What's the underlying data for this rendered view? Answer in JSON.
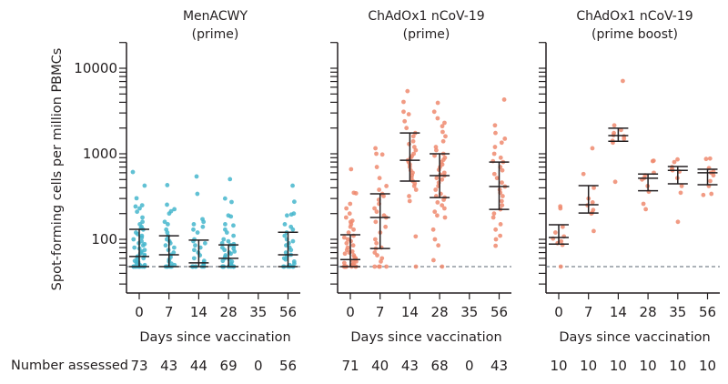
{
  "chart_data": {
    "type": "scatter",
    "ylabel": "Spot-forming cells per million PBMCs",
    "yscale": "log",
    "ylim": [
      23.5,
      20000
    ],
    "yticks_major": [
      100,
      1000,
      10000
    ],
    "ytick_labels": [
      "100",
      "1000",
      "10000"
    ],
    "yticks_minor": [
      30,
      40,
      50,
      60,
      70,
      80,
      90,
      200,
      300,
      400,
      500,
      600,
      700,
      800,
      900,
      2000,
      3000,
      4000,
      5000,
      6000,
      7000,
      8000,
      9000,
      20000
    ],
    "lower_limit_of_detection": 48,
    "number_assessed_label": "Number assessed",
    "colors": {
      "menacwy": "#45b6cd",
      "chadox": "#ee8a6f",
      "bars": "#231f20",
      "dashed": "#5a6670"
    },
    "panels": [
      {
        "title_line1": "MenACWY",
        "title_line2": "(prime)",
        "xlabel": "Days since vaccination",
        "color_key": "menacwy",
        "groups": [
          {
            "day": "0",
            "n": "73",
            "median": 63,
            "q1": 48,
            "q3": 131,
            "points": [
              612,
              424,
              302,
              242,
              250,
              230,
              210,
              180,
              160,
              150,
              140,
              135,
              130,
              120,
              115,
              110,
              105,
              100,
              95,
              90,
              88,
              85,
              80,
              78,
              75,
              72,
              70,
              68,
              66,
              64,
              63,
              62,
              60,
              58,
              56,
              55,
              54,
              52,
              50,
              50,
              48,
              48,
              48,
              48,
              48,
              48,
              48,
              48,
              48,
              48
            ]
          },
          {
            "day": "7",
            "n": "43",
            "median": 66,
            "q1": 48,
            "q3": 110,
            "points": [
              430,
              254,
              213,
              225,
              200,
              160,
              150,
              130,
              120,
              110,
              100,
              95,
              90,
              85,
              80,
              75,
              70,
              66,
              62,
              58,
              55,
              52,
              50,
              48,
              48,
              48,
              48,
              48
            ]
          },
          {
            "day": "14",
            "n": "44",
            "median": 53,
            "q1": 48,
            "q3": 98,
            "points": [
              543,
              340,
              172,
              160,
              150,
              140,
              130,
              120,
              100,
              95,
              90,
              85,
              80,
              75,
              70,
              65,
              60,
              56,
              53,
              52,
              50,
              48,
              48,
              48,
              48,
              48,
              48,
              48
            ]
          },
          {
            "day": "28",
            "n": "69",
            "median": 60,
            "q1": 48,
            "q3": 86,
            "points": [
              505,
              300,
              273,
              190,
              185,
              150,
              145,
              130,
              120,
              110,
              100,
              95,
              90,
              88,
              86,
              84,
              80,
              78,
              75,
              72,
              70,
              68,
              65,
              62,
              60,
              58,
              56,
              55,
              52,
              50,
              48,
              48,
              48,
              48,
              48,
              48,
              48,
              48,
              48
            ]
          },
          {
            "day": "35",
            "n": "0",
            "median": null,
            "q1": null,
            "q3": null,
            "points": []
          },
          {
            "day": "56",
            "n": "56",
            "median": 66,
            "q1": 48,
            "q3": 121,
            "points": [
              424,
              275,
              200,
              195,
              190,
              150,
              140,
              130,
              120,
              110,
              100,
              95,
              90,
              85,
              80,
              75,
              70,
              66,
              64,
              60,
              58,
              55,
              52,
              50,
              48,
              48,
              48,
              48,
              48,
              48
            ]
          }
        ]
      },
      {
        "title_line1": "ChAdOx1 nCoV-19",
        "title_line2": "(prime)",
        "xlabel": "Days since vaccination",
        "color_key": "chadox",
        "groups": [
          {
            "day": "0",
            "n": "71",
            "median": 58,
            "q1": 48,
            "q3": 113,
            "points": [
              660,
              350,
              345,
              260,
              230,
              200,
              180,
              165,
              160,
              150,
              140,
              130,
              120,
              110,
              105,
              100,
              95,
              90,
              85,
              80,
              75,
              72,
              70,
              68,
              65,
              62,
              60,
              58,
              56,
              55,
              53,
              52,
              50,
              50,
              48,
              48,
              48,
              48,
              48,
              48,
              48,
              48,
              48,
              48
            ]
          },
          {
            "day": "7",
            "n": "40",
            "median": 180,
            "q1": 78,
            "q3": 340,
            "points": [
              1160,
              1000,
              980,
              700,
              520,
              420,
              380,
              340,
              320,
              290,
              260,
              230,
              210,
              190,
              180,
              160,
              140,
              120,
              100,
              90,
              80,
              78,
              70,
              65,
              60,
              55,
              48,
              48,
              48,
              48
            ]
          },
          {
            "day": "14",
            "n": "43",
            "median": 840,
            "q1": 480,
            "q3": 1750,
            "points": [
              5400,
              4040,
              3100,
              2900,
              2400,
              2000,
              1750,
              1600,
              1400,
              1300,
              1200,
              1100,
              1000,
              940,
              900,
              840,
              800,
              750,
              700,
              640,
              600,
              560,
              520,
              480,
              450,
              420,
              380,
              320,
              280,
              108,
              48
            ]
          },
          {
            "day": "28",
            "n": "68",
            "median": 555,
            "q1": 308,
            "q3": 1000,
            "points": [
              3940,
              3100,
              2600,
              2300,
              2100,
              1800,
              1600,
              1400,
              1200,
              1100,
              1000,
              950,
              900,
              850,
              800,
              750,
              700,
              650,
              600,
              570,
              555,
              520,
              500,
              460,
              420,
              380,
              340,
              320,
              308,
              290,
              270,
              250,
              230,
              210,
              190,
              180,
              130,
              100,
              85,
              57,
              48
            ]
          },
          {
            "day": "35",
            "n": "0",
            "median": null,
            "q1": null,
            "q3": null,
            "points": []
          },
          {
            "day": "56",
            "n": "43",
            "median": 414,
            "q1": 224,
            "q3": 800,
            "points": [
              4300,
              2150,
              1750,
              1500,
              1350,
              1200,
              1000,
              900,
              820,
              800,
              700,
              640,
              580,
              520,
              460,
              414,
              380,
              350,
              320,
              280,
              250,
              224,
              200,
              180,
              150,
              130,
              110,
              100,
              84
            ]
          }
        ]
      },
      {
        "title_line1": "ChAdOx1 nCoV-19",
        "title_line2": "(prime boost)",
        "xlabel": "Days since vaccination",
        "color_key": "chadox",
        "groups": [
          {
            "day": "0",
            "n": "10",
            "median": 105,
            "q1": 88,
            "q3": 148,
            "points": [
              243,
              230,
              140,
              120,
              108,
              102,
              95,
              90,
              86,
              48
            ]
          },
          {
            "day": "7",
            "n": "10",
            "median": 254,
            "q1": 203,
            "q3": 424,
            "points": [
              1160,
              580,
              400,
              300,
              270,
              250,
              220,
              205,
              200,
              125
            ]
          },
          {
            "day": "14",
            "n": "10",
            "median": 1630,
            "q1": 1400,
            "q3": 1990,
            "points": [
              7100,
              2150,
              1900,
              1750,
              1650,
              1600,
              1500,
              1420,
              1350,
              470
            ]
          },
          {
            "day": "28",
            "n": "10",
            "median": 517,
            "q1": 370,
            "q3": 580,
            "points": [
              830,
              820,
              600,
              560,
              520,
              500,
              420,
              360,
              260,
              225
            ]
          },
          {
            "day": "35",
            "n": "10",
            "median": 640,
            "q1": 445,
            "q3": 710,
            "points": [
              860,
              800,
              700,
              660,
              640,
              620,
              520,
              420,
              350,
              160
            ]
          },
          {
            "day": "56",
            "n": "10",
            "median": 600,
            "q1": 435,
            "q3": 660,
            "points": [
              880,
              870,
              680,
              620,
              600,
              560,
              480,
              420,
              340,
              330
            ]
          }
        ]
      }
    ]
  }
}
